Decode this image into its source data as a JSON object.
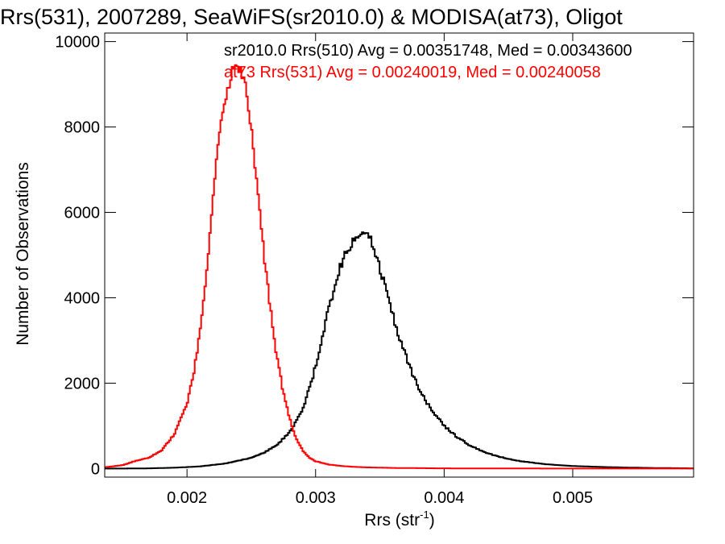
{
  "chart_data": {
    "type": "line",
    "title": "Rrs(531), 2007289, SeaWiFS(sr2010.0) & MODISA(at73), Oligot",
    "xlabel": "Rrs (str",
    "xlabel_sup": "-1",
    "xlabel_tail": ")",
    "ylabel": "Number of Observations",
    "xlim": [
      0.00136,
      0.00594
    ],
    "ylim": [
      -200,
      10200
    ],
    "xticks": [
      {
        "value": 0.002,
        "label": "0.002"
      },
      {
        "value": 0.003,
        "label": "0.003"
      },
      {
        "value": 0.004,
        "label": "0.004"
      },
      {
        "value": 0.005,
        "label": "0.005"
      }
    ],
    "yticks": [
      {
        "value": 0,
        "label": "0"
      },
      {
        "value": 2000,
        "label": "2000"
      },
      {
        "value": 4000,
        "label": "4000"
      },
      {
        "value": 6000,
        "label": "6000"
      },
      {
        "value": 8000,
        "label": "8000"
      },
      {
        "value": 10000,
        "label": "10000"
      }
    ],
    "grid": false,
    "legend_position": "top-right",
    "series": [
      {
        "name": "sr2010.0 Rrs(510) Avg = 0.00351748, Med = 0.00343600",
        "color": "#000000",
        "step": true,
        "x": [
          0.00136,
          0.0015,
          0.0017,
          0.0019,
          0.0021,
          0.0023,
          0.0025,
          0.0026,
          0.0027,
          0.0028,
          0.0029,
          0.00295,
          0.003,
          0.00305,
          0.0031,
          0.00315,
          0.0032,
          0.00325,
          0.0033,
          0.00335,
          0.0034,
          0.00345,
          0.0035,
          0.00355,
          0.0036,
          0.00365,
          0.0037,
          0.00375,
          0.0038,
          0.00385,
          0.0039,
          0.004,
          0.0041,
          0.0042,
          0.0043,
          0.0044,
          0.0045,
          0.0046,
          0.0048,
          0.005,
          0.0052,
          0.0054,
          0.0056,
          0.00594
        ],
        "y": [
          0,
          0,
          5,
          20,
          50,
          120,
          250,
          370,
          560,
          850,
          1400,
          1850,
          2400,
          3050,
          3700,
          4300,
          4800,
          5150,
          5400,
          5550,
          5500,
          5250,
          4700,
          4150,
          3600,
          3100,
          2650,
          2250,
          1900,
          1620,
          1380,
          1000,
          740,
          540,
          400,
          300,
          225,
          170,
          100,
          60,
          40,
          25,
          15,
          5
        ]
      },
      {
        "name": "at73 Rrs(531) Avg = 0.00240019, Med = 0.00240058",
        "color": "#ff0000",
        "step": true,
        "x": [
          0.00136,
          0.0015,
          0.0016,
          0.0017,
          0.0018,
          0.0019,
          0.002,
          0.00205,
          0.0021,
          0.00215,
          0.0022,
          0.00225,
          0.0023,
          0.00235,
          0.0024,
          0.00245,
          0.0025,
          0.00255,
          0.0026,
          0.00265,
          0.0027,
          0.00275,
          0.0028,
          0.00285,
          0.0029,
          0.00295,
          0.003,
          0.0031,
          0.0032,
          0.0033,
          0.0034,
          0.0036,
          0.0038,
          0.004,
          0.0045,
          0.005,
          0.00594
        ],
        "y": [
          30,
          80,
          180,
          250,
          420,
          800,
          1500,
          2200,
          3200,
          4600,
          6200,
          7800,
          8700,
          9300,
          9400,
          9000,
          8000,
          6500,
          5000,
          3700,
          2600,
          1750,
          1150,
          700,
          420,
          260,
          170,
          95,
          60,
          40,
          28,
          15,
          10,
          5,
          2,
          0,
          0
        ]
      }
    ]
  }
}
